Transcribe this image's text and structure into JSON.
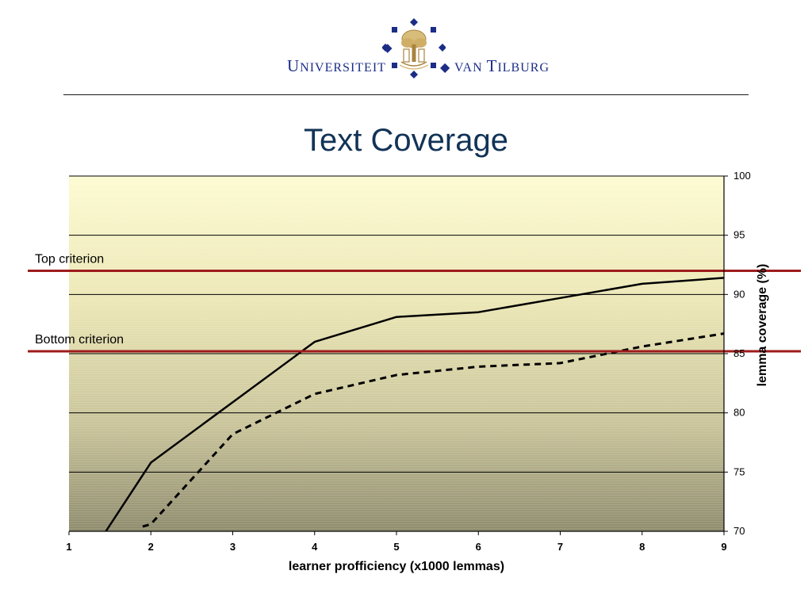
{
  "header": {
    "logo": {
      "left_word_initial": "U",
      "left_word_rest": "NIVERSITEIT",
      "right_word_prefix": "VAN",
      "right_word_initial": "T",
      "right_word_rest": "ILBURG",
      "color": "#1c2d86",
      "emblem_icon": "tree-emblem-icon",
      "emblem_color": "#c9a85c"
    },
    "rule_color": "#1a1a1a"
  },
  "slide": {
    "title": "Text Coverage",
    "title_color": "#123356"
  },
  "chart_data": {
    "type": "line",
    "title": "",
    "xlabel": "learner profficiency (x1000 lemmas)",
    "ylabel": "lemma coverage (%)",
    "xlim": [
      1,
      9
    ],
    "ylim": [
      70,
      100
    ],
    "x_ticks": [
      "1",
      "2",
      "3",
      "4",
      "5",
      "6",
      "7",
      "8",
      "9"
    ],
    "y_ticks": [
      "70",
      "75",
      "80",
      "85",
      "90",
      "95",
      "100"
    ],
    "y_axis_side": "right",
    "grid": "horizontal",
    "background": "gradient pale yellow to olive",
    "series": [
      {
        "style": "solid",
        "color": "#000000",
        "x": [
          1.45,
          2,
          3,
          4,
          5,
          6,
          7,
          8,
          9
        ],
        "y": [
          70,
          75.8,
          80.9,
          86,
          88.1,
          88.5,
          89.7,
          90.9,
          91.4
        ]
      },
      {
        "style": "dashed",
        "color": "#000000",
        "x": [
          1.9,
          2,
          3,
          4,
          5,
          6,
          7,
          8,
          9
        ],
        "y": [
          70.4,
          70.6,
          78.2,
          81.6,
          83.2,
          83.9,
          84.2,
          85.6,
          86.7
        ]
      }
    ],
    "reference_lines": [
      {
        "label": "Top criterion",
        "y": 92,
        "color": "#9e1b1b"
      },
      {
        "label": "Bottom criterion",
        "y": 85.2,
        "color": "#9e1b1b"
      }
    ]
  }
}
